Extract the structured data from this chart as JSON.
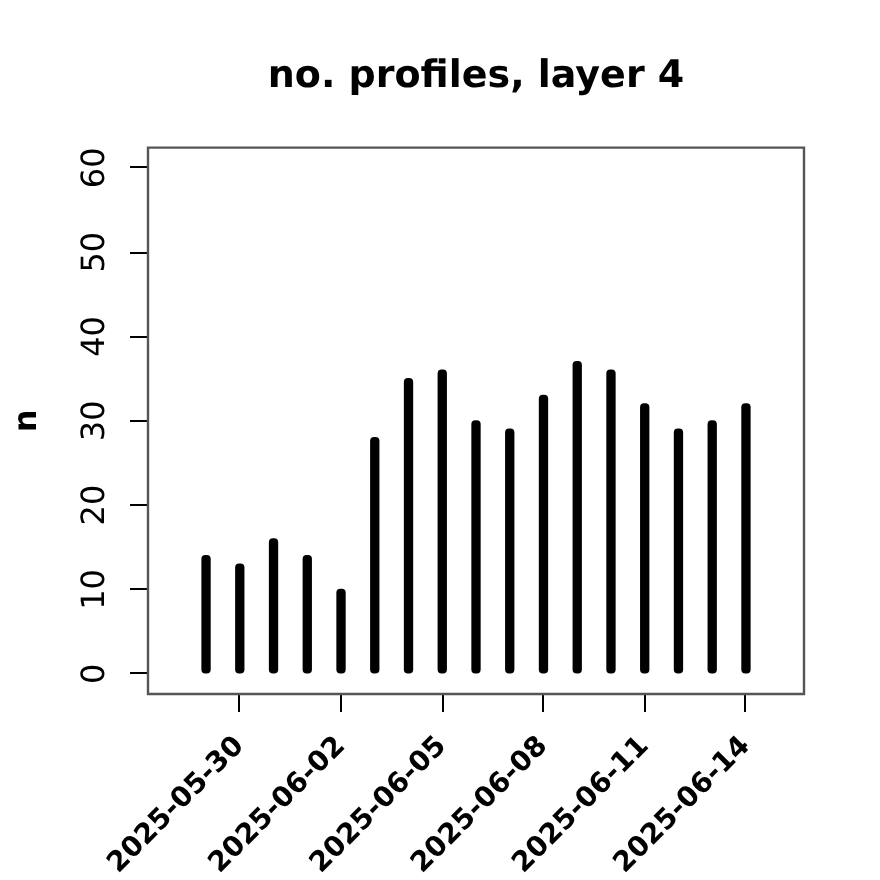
{
  "chart_data": {
    "type": "bar",
    "title": "no. profiles, layer 4",
    "ylabel": "n",
    "x": [
      "2025-05-29",
      "2025-05-30",
      "2025-05-31",
      "2025-06-01",
      "2025-06-02",
      "2025-06-03",
      "2025-06-04",
      "2025-06-05",
      "2025-06-06",
      "2025-06-07",
      "2025-06-08",
      "2025-06-09",
      "2025-06-10",
      "2025-06-11",
      "2025-06-12",
      "2025-06-13",
      "2025-06-14"
    ],
    "values": [
      14,
      13,
      16,
      14,
      10,
      28,
      35,
      36,
      30,
      29,
      33,
      37,
      36,
      32,
      29,
      30,
      32
    ],
    "color": "#000000",
    "xlim": [
      "2025-05-27T06:43",
      "2025-06-15T17:17"
    ],
    "xticks": [
      "2025-05-30",
      "2025-06-02",
      "2025-06-05",
      "2025-06-08",
      "2025-06-11",
      "2025-06-14"
    ],
    "ylim": [
      -2.4,
      62.4
    ],
    "yticks": [
      0,
      10,
      20,
      30,
      40,
      50,
      60
    ]
  }
}
